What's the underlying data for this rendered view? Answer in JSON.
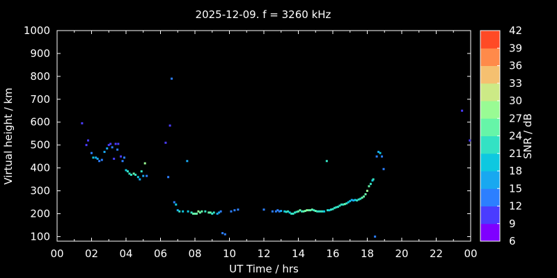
{
  "chart_data": {
    "type": "scatter",
    "title": "2025-12-09. f = 3260 kHz",
    "xlabel": "UT Time / hrs",
    "ylabel": "Virtual height / km",
    "xlim": [
      0,
      24
    ],
    "ylim": [
      80,
      1000
    ],
    "xticks": [
      "00",
      "02",
      "04",
      "06",
      "08",
      "10",
      "12",
      "14",
      "16",
      "18",
      "20",
      "22",
      "00"
    ],
    "yticks": [
      100,
      200,
      300,
      400,
      500,
      600,
      700,
      800,
      900,
      1000
    ],
    "grid": false,
    "colorbar": {
      "label": "SNR / dB",
      "range": [
        6,
        42
      ],
      "ticks": [
        6,
        9,
        12,
        15,
        18,
        21,
        24,
        27,
        30,
        33,
        36,
        39,
        42
      ],
      "colors": [
        "#7f00ff",
        "#4a3cff",
        "#2c7fff",
        "#18a8f0",
        "#0ec8e0",
        "#33e2c4",
        "#66f5a8",
        "#99fb94",
        "#ccea86",
        "#f5c070",
        "#ff8a4a",
        "#ff4a25"
      ]
    },
    "points": [
      [
        1.45,
        595,
        10
      ],
      [
        1.7,
        500,
        10
      ],
      [
        1.8,
        520,
        11
      ],
      [
        2.0,
        465,
        14
      ],
      [
        2.1,
        445,
        18
      ],
      [
        2.25,
        445,
        16
      ],
      [
        2.35,
        440,
        15
      ],
      [
        2.45,
        430,
        13
      ],
      [
        2.6,
        435,
        14
      ],
      [
        2.75,
        470,
        16
      ],
      [
        2.9,
        485,
        15
      ],
      [
        3.0,
        500,
        10
      ],
      [
        3.1,
        505,
        10
      ],
      [
        3.2,
        490,
        12
      ],
      [
        3.3,
        440,
        11
      ],
      [
        3.4,
        505,
        10
      ],
      [
        3.5,
        480,
        12
      ],
      [
        3.55,
        505,
        10
      ],
      [
        3.7,
        450,
        11
      ],
      [
        3.8,
        430,
        13
      ],
      [
        3.9,
        445,
        13
      ],
      [
        4.0,
        390,
        18
      ],
      [
        4.1,
        385,
        21
      ],
      [
        4.2,
        375,
        23
      ],
      [
        4.3,
        370,
        22
      ],
      [
        4.45,
        375,
        24
      ],
      [
        4.55,
        370,
        22
      ],
      [
        4.7,
        360,
        18
      ],
      [
        4.8,
        350,
        15
      ],
      [
        4.9,
        385,
        22
      ],
      [
        5.0,
        365,
        16
      ],
      [
        5.1,
        420,
        27
      ],
      [
        5.2,
        365,
        14
      ],
      [
        6.3,
        510,
        10
      ],
      [
        6.45,
        360,
        13
      ],
      [
        6.55,
        585,
        11
      ],
      [
        6.65,
        790,
        14
      ],
      [
        6.8,
        250,
        14
      ],
      [
        6.9,
        240,
        20
      ],
      [
        7.0,
        215,
        17
      ],
      [
        7.1,
        210,
        21
      ],
      [
        7.3,
        210,
        19
      ],
      [
        7.55,
        430,
        17
      ],
      [
        7.6,
        210,
        20
      ],
      [
        7.8,
        205,
        23
      ],
      [
        7.9,
        200,
        25
      ],
      [
        8.0,
        200,
        24
      ],
      [
        8.1,
        200,
        26
      ],
      [
        8.2,
        210,
        27
      ],
      [
        8.3,
        205,
        25
      ],
      [
        8.4,
        210,
        24
      ],
      [
        8.6,
        210,
        22
      ],
      [
        8.8,
        205,
        24
      ],
      [
        8.9,
        205,
        25
      ],
      [
        9.0,
        200,
        21
      ],
      [
        9.1,
        205,
        22
      ],
      [
        9.3,
        200,
        15
      ],
      [
        9.4,
        205,
        16
      ],
      [
        9.5,
        210,
        14
      ],
      [
        9.6,
        115,
        13
      ],
      [
        9.75,
        110,
        13
      ],
      [
        10.1,
        210,
        14
      ],
      [
        10.3,
        215,
        13
      ],
      [
        10.5,
        218,
        13
      ],
      [
        12.0,
        218,
        12
      ],
      [
        12.5,
        210,
        14
      ],
      [
        12.7,
        210,
        12
      ],
      [
        12.8,
        215,
        14
      ],
      [
        12.9,
        210,
        13
      ],
      [
        13.0,
        212,
        16
      ],
      [
        13.2,
        210,
        18
      ],
      [
        13.3,
        208,
        21
      ],
      [
        13.4,
        210,
        22
      ],
      [
        13.5,
        205,
        20
      ],
      [
        13.6,
        200,
        22
      ],
      [
        13.7,
        200,
        21
      ],
      [
        13.8,
        205,
        23
      ],
      [
        13.9,
        208,
        22
      ],
      [
        14.0,
        210,
        24
      ],
      [
        14.1,
        215,
        25
      ],
      [
        14.2,
        210,
        23
      ],
      [
        14.3,
        210,
        25
      ],
      [
        14.4,
        212,
        26
      ],
      [
        14.5,
        215,
        27
      ],
      [
        14.6,
        215,
        26
      ],
      [
        14.7,
        215,
        25
      ],
      [
        14.8,
        218,
        24
      ],
      [
        14.9,
        215,
        23
      ],
      [
        15.0,
        212,
        25
      ],
      [
        15.1,
        210,
        22
      ],
      [
        15.2,
        210,
        21
      ],
      [
        15.3,
        210,
        21
      ],
      [
        15.4,
        210,
        22
      ],
      [
        15.5,
        210,
        20
      ],
      [
        15.65,
        430,
        21
      ],
      [
        15.7,
        215,
        22
      ],
      [
        15.8,
        215,
        20
      ],
      [
        15.9,
        218,
        21
      ],
      [
        16.0,
        220,
        22
      ],
      [
        16.1,
        225,
        21
      ],
      [
        16.2,
        228,
        21
      ],
      [
        16.3,
        230,
        22
      ],
      [
        16.4,
        235,
        23
      ],
      [
        16.5,
        240,
        23
      ],
      [
        16.6,
        240,
        22
      ],
      [
        16.7,
        242,
        24
      ],
      [
        16.8,
        245,
        23
      ],
      [
        16.9,
        250,
        19
      ],
      [
        17.0,
        255,
        18
      ],
      [
        17.1,
        260,
        17
      ],
      [
        17.2,
        258,
        16
      ],
      [
        17.3,
        260,
        18
      ],
      [
        17.4,
        258,
        21
      ],
      [
        17.5,
        262,
        22
      ],
      [
        17.6,
        265,
        22
      ],
      [
        17.7,
        270,
        24
      ],
      [
        17.8,
        275,
        25
      ],
      [
        17.9,
        285,
        26
      ],
      [
        18.0,
        300,
        27
      ],
      [
        18.1,
        320,
        25
      ],
      [
        18.2,
        330,
        22
      ],
      [
        18.3,
        345,
        20
      ],
      [
        18.35,
        350,
        21
      ],
      [
        18.45,
        100,
        14
      ],
      [
        18.55,
        450,
        13
      ],
      [
        18.65,
        470,
        16
      ],
      [
        18.75,
        465,
        18
      ],
      [
        18.85,
        450,
        14
      ],
      [
        18.95,
        395,
        12
      ],
      [
        23.5,
        650,
        10
      ],
      [
        23.95,
        520,
        10
      ]
    ]
  }
}
